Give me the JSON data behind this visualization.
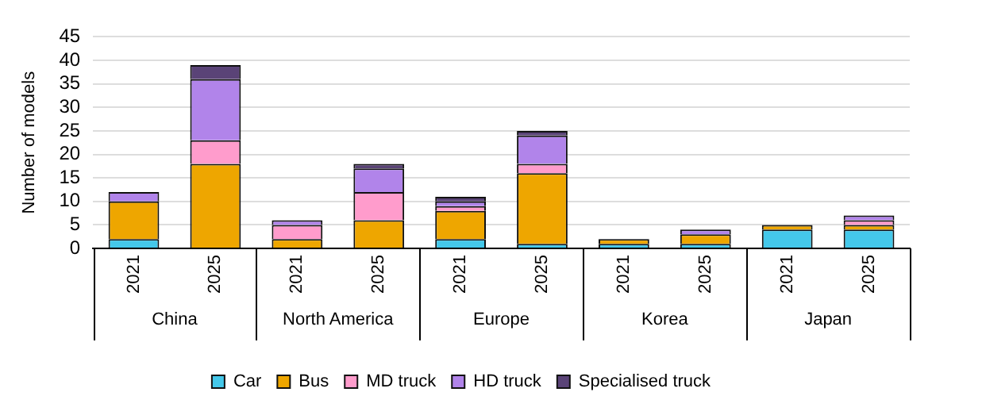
{
  "chart_data": {
    "type": "bar",
    "stacked": true,
    "ylabel": "Number of models",
    "categories": [
      "2021",
      "2025",
      "2021",
      "2025",
      "2021",
      "2025",
      "2021",
      "2025",
      "2021",
      "2025"
    ],
    "annotations": [
      "China",
      "North America",
      "Europe",
      "Korea",
      "Japan"
    ],
    "series": [
      {
        "name": "Car",
        "color": "#44c8ea",
        "values": [
          2,
          0,
          0,
          0,
          2,
          1,
          1,
          1,
          4,
          4
        ]
      },
      {
        "name": "Bus",
        "color": "#eea600",
        "values": [
          8,
          18,
          2,
          6,
          6,
          15,
          1,
          2,
          1,
          1
        ]
      },
      {
        "name": "MD truck",
        "color": "#ff9ccc",
        "values": [
          0,
          5,
          3,
          6,
          1,
          2,
          0,
          0,
          0,
          1
        ]
      },
      {
        "name": "HD truck",
        "color": "#b184ea",
        "values": [
          2,
          13,
          1,
          5,
          1,
          6,
          0,
          1,
          0,
          1
        ]
      },
      {
        "name": "Specialised truck",
        "color": "#5a4377",
        "values": [
          0,
          3,
          0,
          1,
          1,
          1,
          0,
          0,
          0,
          0
        ]
      }
    ],
    "ylim": [
      0,
      45
    ],
    "yticks": [
      0,
      5,
      10,
      15,
      20,
      25,
      30,
      35,
      40,
      45
    ],
    "grid": "y",
    "legend": "bottom"
  }
}
